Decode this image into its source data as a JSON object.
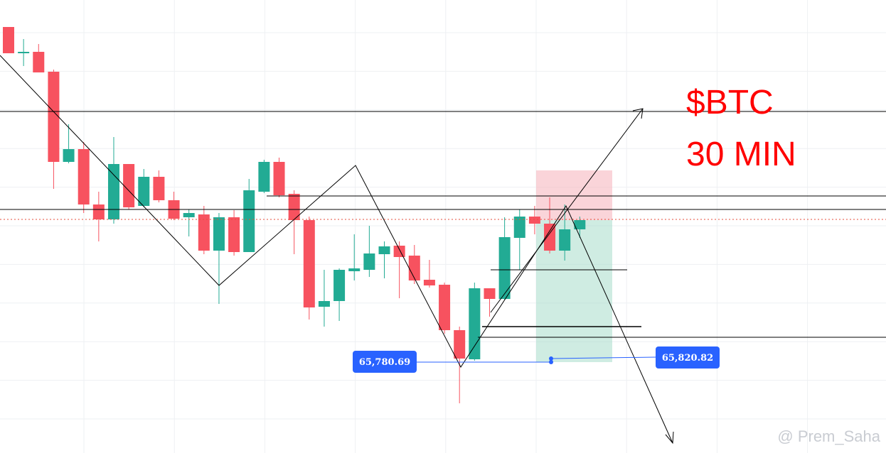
{
  "title": "$BTC",
  "timeframe": "30 MIN",
  "price_labels": [
    "65,780.69",
    "65,820.82"
  ],
  "watermark": "@ Prem_Saha"
}
